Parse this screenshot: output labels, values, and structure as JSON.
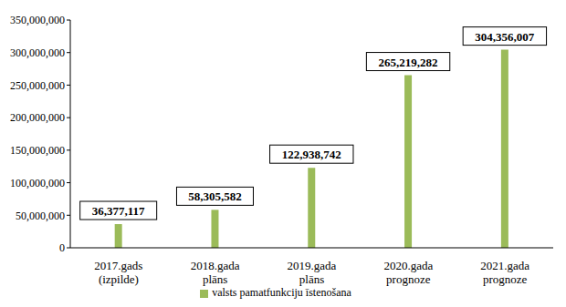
{
  "chart_data": {
    "type": "bar",
    "categories": [
      "2017.gads (izpilde)",
      "2018.gada plāns",
      "2019.gada plāns",
      "2020.gada prognoze",
      "2021.gada prognoze"
    ],
    "series": [
      {
        "name": "valsts pamatfunkciju īstenošana",
        "color": "#9bbb59",
        "values": [
          36377117,
          58305582,
          122938742,
          265219282,
          304356007
        ],
        "value_labels": [
          "36,377,117",
          "58,305,582",
          "122,938,742",
          "265,219,282",
          "304,356,007"
        ]
      }
    ],
    "ylim": [
      0,
      350000000
    ],
    "yticks": [
      {
        "value": 0,
        "label": "0"
      },
      {
        "value": 50000000,
        "label": "50,000,000"
      },
      {
        "value": 100000000,
        "label": "100,000,000"
      },
      {
        "value": 150000000,
        "label": "150,000,000"
      },
      {
        "value": 200000000,
        "label": "200,000,000"
      },
      {
        "value": 250000000,
        "label": "250,000,000"
      },
      {
        "value": 300000000,
        "label": "300,000,000"
      },
      {
        "value": 350000000,
        "label": "350,000,000"
      }
    ],
    "grid": false,
    "data_labels": true,
    "legend": "bottom"
  }
}
